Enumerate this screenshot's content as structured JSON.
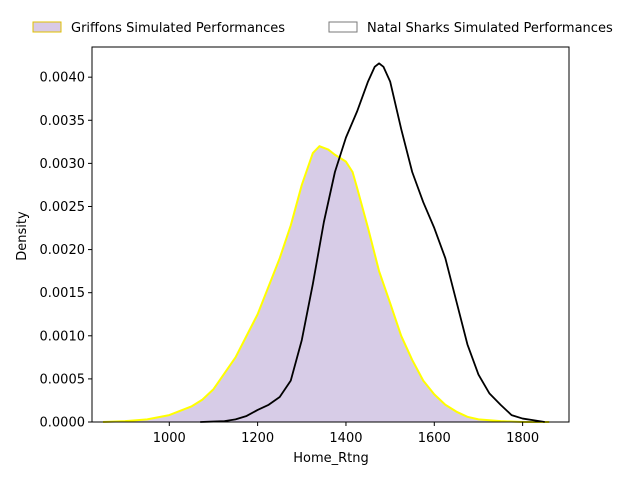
{
  "chart_data": {
    "type": "area",
    "title": "",
    "xlabel": "Home_Rtng",
    "ylabel": "Density",
    "xlim": [
      825,
      1905
    ],
    "ylim": [
      0,
      0.00435
    ],
    "x_ticks": [
      1000,
      1200,
      1400,
      1600,
      1800
    ],
    "y_ticks": [
      0.0,
      0.0005,
      0.001,
      0.0015,
      0.002,
      0.0025,
      0.003,
      0.0035,
      0.004
    ],
    "y_tick_labels": [
      "0.0000",
      "0.0005",
      "0.0010",
      "0.0015",
      "0.0020",
      "0.0025",
      "0.0030",
      "0.0035",
      "0.0040"
    ],
    "legend_position": "top (outside plot)",
    "grid": false,
    "series": [
      {
        "name": "Griffons Simulated Performances",
        "style": "filled",
        "fill": "#9b7fc2",
        "fill_opacity": 0.4,
        "line_color": "#ffff00",
        "points": [
          [
            850,
            0.0
          ],
          [
            900,
            1e-05
          ],
          [
            950,
            3e-05
          ],
          [
            1000,
            8e-05
          ],
          [
            1050,
            0.00018
          ],
          [
            1075,
            0.00026
          ],
          [
            1100,
            0.00038
          ],
          [
            1150,
            0.00075
          ],
          [
            1200,
            0.00125
          ],
          [
            1250,
            0.0019
          ],
          [
            1275,
            0.00228
          ],
          [
            1300,
            0.00275
          ],
          [
            1325,
            0.00312
          ],
          [
            1340,
            0.0032
          ],
          [
            1360,
            0.00316
          ],
          [
            1375,
            0.0031
          ],
          [
            1400,
            0.00302
          ],
          [
            1415,
            0.0029
          ],
          [
            1425,
            0.00272
          ],
          [
            1450,
            0.00225
          ],
          [
            1475,
            0.00175
          ],
          [
            1500,
            0.00138
          ],
          [
            1525,
            0.001
          ],
          [
            1550,
            0.00072
          ],
          [
            1575,
            0.00048
          ],
          [
            1600,
            0.00032
          ],
          [
            1625,
            0.0002
          ],
          [
            1650,
            0.00012
          ],
          [
            1675,
            6e-05
          ],
          [
            1700,
            3e-05
          ],
          [
            1750,
            1e-05
          ],
          [
            1800,
            0.0
          ],
          [
            1860,
            0.0
          ]
        ]
      },
      {
        "name": "Natal Sharks Simulated Performances",
        "style": "line",
        "line_color": "#000000",
        "points": [
          [
            1070,
            0.0
          ],
          [
            1100,
            5e-06
          ],
          [
            1125,
            1e-05
          ],
          [
            1150,
            3e-05
          ],
          [
            1175,
            7e-05
          ],
          [
            1200,
            0.00014
          ],
          [
            1225,
            0.0002
          ],
          [
            1250,
            0.00029
          ],
          [
            1275,
            0.00048
          ],
          [
            1300,
            0.00095
          ],
          [
            1325,
            0.0016
          ],
          [
            1350,
            0.00232
          ],
          [
            1375,
            0.0029
          ],
          [
            1400,
            0.0033
          ],
          [
            1425,
            0.0036
          ],
          [
            1450,
            0.00395
          ],
          [
            1465,
            0.00412
          ],
          [
            1475,
            0.00416
          ],
          [
            1485,
            0.00412
          ],
          [
            1500,
            0.00395
          ],
          [
            1525,
            0.0034
          ],
          [
            1550,
            0.0029
          ],
          [
            1575,
            0.00255
          ],
          [
            1600,
            0.00225
          ],
          [
            1625,
            0.0019
          ],
          [
            1650,
            0.0014
          ],
          [
            1675,
            0.0009
          ],
          [
            1700,
            0.00055
          ],
          [
            1725,
            0.00033
          ],
          [
            1750,
            0.0002
          ],
          [
            1775,
            8e-05
          ],
          [
            1800,
            4e-05
          ],
          [
            1825,
            2e-05
          ],
          [
            1850,
            0.0
          ]
        ]
      }
    ]
  }
}
